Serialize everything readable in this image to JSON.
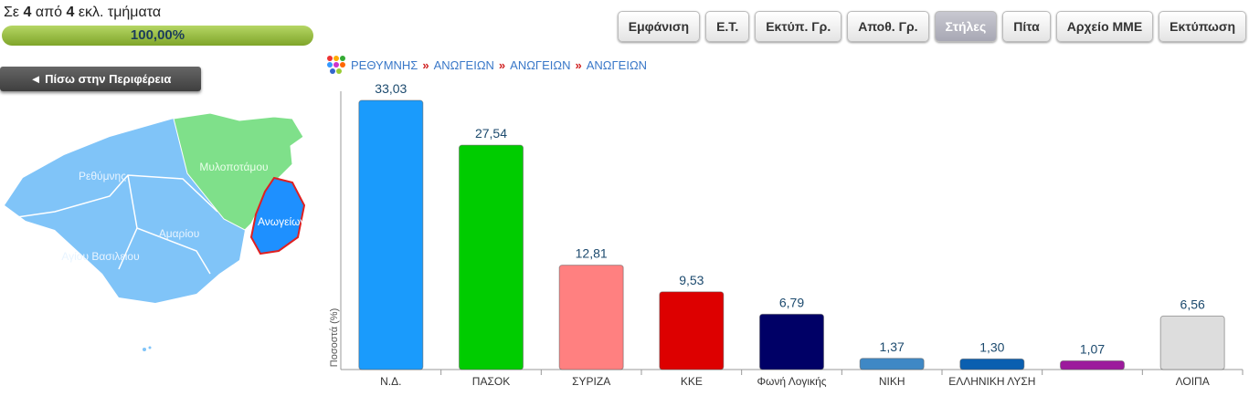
{
  "header": {
    "prefix": "Σε",
    "counted": "4",
    "middle": "από",
    "total": "4",
    "suffix": "εκλ. τμήματα",
    "progress_label": "100,00%"
  },
  "toolbar": {
    "buttons": [
      "Εμφάνιση",
      "Ε.Τ.",
      "Εκτύπ. Γρ.",
      "Αποθ. Γρ.",
      "Στήλες",
      "Πίτα",
      "Αρχείο ΜΜΕ",
      "Εκτύπωση"
    ],
    "active": 4
  },
  "back_button": "Πίσω στην Περιφέρεια",
  "breadcrumb": [
    "ΡΕΘΥΜΝΗΣ",
    "ΑΝΩΓΕΙΩΝ",
    "ΑΝΩΓΕΙΩΝ",
    "ΑΝΩΓΕΙΩΝ"
  ],
  "map": {
    "labels": [
      "Ρεθύμνης",
      "Μυλοποτάμου",
      "Ανωγείων",
      "Αμαρίου",
      "Αγίου Βασιλείου"
    ]
  },
  "chart_data": {
    "type": "bar",
    "y_label": "Ποσοστά (%)",
    "categories": [
      "Ν.Δ.",
      "ΠΑΣΟΚ",
      "ΣΥΡΙΖΑ",
      "ΚΚΕ",
      "Φωνή Λογικής",
      "ΝΙΚΗ",
      "ΕΛΛΗΝΙΚΗ ΛΥΣΗ",
      null,
      "ΛΟΙΠΑ"
    ],
    "values": [
      33.03,
      27.54,
      12.81,
      9.53,
      6.79,
      1.37,
      1.3,
      1.07,
      6.56
    ],
    "value_labels": [
      "33,03",
      "27,54",
      "12,81",
      "9,53",
      "6,79",
      "1,37",
      "1,30",
      "1,07",
      "6,56"
    ],
    "colors": [
      "#1a9bfc",
      "#00cc00",
      "#ff8080",
      "#dd0000",
      "#000066",
      "#3f88c5",
      "#0a5fb0",
      "#9c1a9c",
      "#dddddd"
    ]
  }
}
